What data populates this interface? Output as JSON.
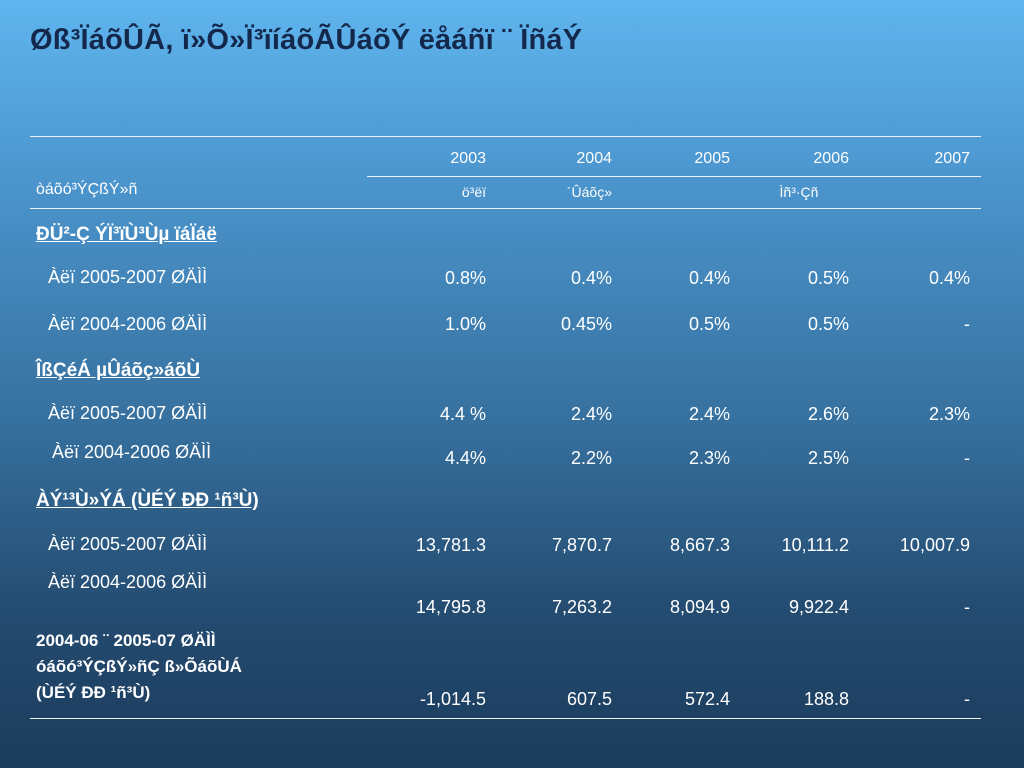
{
  "title": "Øß³ÏáõÛÃ, ï»Õ»Ï³ïíáõÃÛáõÝ ëåáñï ¨ ÏñáÝ",
  "table": {
    "row_header_label": "òáõó³ÝÇßÝ»ñ",
    "years": [
      "2003",
      "2004",
      "2005",
      "2006",
      "2007"
    ],
    "subheaders": {
      "col1": "ö³ëï",
      "col2": "´Ûáõç»",
      "col45": "Ìñ³·Çñ"
    },
    "sections": [
      {
        "title": "ÐÜ²-Ç ÝÏ³ïÙ³Ùµ ïáÏáë",
        "rows": [
          {
            "label": "Àëï 2005-2007 ØÄÌÌ",
            "values": [
              "0.8%",
              "0.4%",
              "0.4%",
              "0.5%",
              "0.4%"
            ]
          },
          {
            "label": "Àëï 2004-2006 ØÄÌÌ",
            "values": [
              "1.0%",
              "0.45%",
              "0.5%",
              "0.5%",
              "-"
            ]
          }
        ]
      },
      {
        "title": "ÎßÇéÁ µÛáõç»áõÙ",
        "rows": [
          {
            "label": "Àëï 2005-2007 ØÄÌÌ",
            "values": [
              "4.4 %",
              "2.4%",
              "2.4%",
              "2.6%",
              "2.3%"
            ]
          },
          {
            "label": "Àëï 2004-2006 ØÄÌÌ",
            "values": [
              "4.4%",
              "2.2%",
              "2.3%",
              "2.5%",
              "-"
            ]
          }
        ]
      },
      {
        "title": "ÀÝ¹³Ù»ÝÁ (ÙÉÝ ÐÐ ¹ñ³Ù)",
        "rows": [
          {
            "label": "Àëï 2005-2007 ØÄÌÌ",
            "values": [
              "13,781.3",
              "7,870.7",
              "8,667.3",
              "10,111.2",
              "10,007.9"
            ]
          },
          {
            "label": "Àëï 2004-2006 ØÄÌÌ",
            "values": [
              "14,795.8",
              "7,263.2",
              "8,094.9",
              "9,922.4",
              "-"
            ]
          }
        ]
      }
    ],
    "footer": {
      "label_lines": [
        "2004-06 ¨ 2005-07 ØÄÌÌ",
        "óáõó³ÝÇßÝ»ñÇ ß»ÕáõÙÁ",
        "(ÙÉÝ ÐÐ ¹ñ³Ù)"
      ],
      "values": [
        "-1,014.5",
        "607.5",
        "572.4",
        "188.8",
        "-"
      ]
    }
  }
}
